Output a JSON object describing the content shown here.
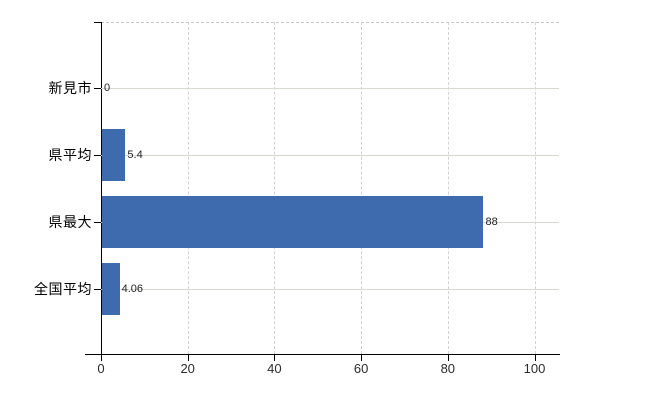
{
  "chart_data": {
    "type": "bar",
    "orientation": "horizontal",
    "title": "",
    "xlabel": "",
    "ylabel": "",
    "categories": [
      "新見市",
      "県平均",
      "県最大",
      "全国平均"
    ],
    "values": [
      0,
      5.4,
      88,
      4.06
    ],
    "value_labels": [
      "0",
      "5.4",
      "88",
      "4.06"
    ],
    "x_ticks": [
      0,
      20,
      40,
      60,
      80,
      100
    ],
    "x_tick_labels": [
      "0",
      "20",
      "40",
      "60",
      "80",
      "100"
    ],
    "xlim": [
      0,
      105.7
    ],
    "grid": true,
    "legend": false,
    "gridline_style": "light dashed vertical at each x tick, light solid horizontal at each category center, dashed top border",
    "colors": {
      "bar": "#3d6bae",
      "axis": "#000000",
      "vertical_gridline": "#d2d2d2",
      "horizontal_gridline": "#d5dbd3",
      "top_border": "#c9c9c9",
      "category_label": "#000000",
      "value_label": "#222222",
      "tick_label": "#2b2b2b",
      "background": "#ffffff"
    }
  }
}
